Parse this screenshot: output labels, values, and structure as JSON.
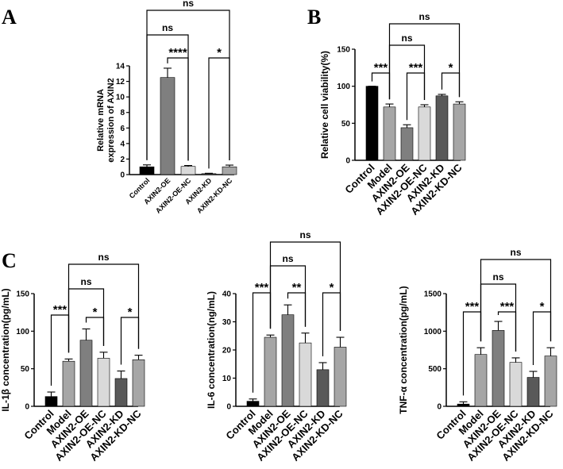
{
  "panel_letters": {
    "a": "A",
    "b": "B",
    "c": "C"
  },
  "colors": {
    "Control": "#000000",
    "Model": "#a6a6a6",
    "AXIN2-OE": "#7f7f7f",
    "AXIN2-OE-NC": "#d9d9d9",
    "AXIN2-KD": "#595959",
    "AXIN2-KD-NC": "#a6a6a6"
  },
  "chart_data": [
    {
      "id": "A",
      "type": "bar",
      "ylabel": "Relative mRNA expression of AXIN2",
      "ylabel_lines": [
        "Relative mRNA",
        "expression of AXIN2"
      ],
      "categories": [
        "Control",
        "AXIN2-OE",
        "AXIN2-OE-NC",
        "AXIN2-KD",
        "AXIN2-KD-NC"
      ],
      "values": [
        1.0,
        12.5,
        1.05,
        0.12,
        1.0
      ],
      "errors": [
        0.25,
        1.2,
        0.12,
        0.05,
        0.22
      ],
      "ylim": [
        0,
        14
      ],
      "yticks": [
        0,
        2,
        4,
        6,
        8,
        10,
        12,
        14
      ],
      "significance": [
        {
          "from": 0,
          "to": 4,
          "label": "ns"
        },
        {
          "from": 0,
          "to": 2,
          "label": "ns"
        },
        {
          "from": 1,
          "to": 2,
          "label": "****"
        },
        {
          "from": 3,
          "to": 4,
          "label": "*"
        }
      ]
    },
    {
      "id": "B",
      "type": "bar",
      "ylabel": "Relative cell viability(%)",
      "categories": [
        "Control",
        "Model",
        "AXIN2-OE",
        "AXIN2-OE-NC",
        "AXIN2-KD",
        "AXIN2-KD-NC"
      ],
      "values": [
        100,
        72,
        44,
        72,
        87,
        76
      ],
      "errors": [
        0,
        4,
        4,
        3,
        2,
        3
      ],
      "ylim": [
        0,
        150
      ],
      "yticks": [
        0,
        50,
        100,
        150
      ],
      "significance": [
        {
          "from": 1,
          "to": 5,
          "label": "ns"
        },
        {
          "from": 1,
          "to": 3,
          "label": "ns"
        },
        {
          "from": 0,
          "to": 1,
          "label": "***"
        },
        {
          "from": 2,
          "to": 3,
          "label": "***"
        },
        {
          "from": 4,
          "to": 5,
          "label": "*"
        }
      ]
    },
    {
      "id": "C1",
      "type": "bar",
      "ylabel": "IL-1β concentration(pg/mL)",
      "categories": [
        "Control",
        "Model",
        "AXIN2-OE",
        "AXIN2-OE-NC",
        "AXIN2-KD",
        "AXIN2-KD-NC"
      ],
      "values": [
        13,
        60,
        88,
        64,
        37,
        62
      ],
      "errors": [
        6,
        3,
        15,
        8,
        10,
        6
      ],
      "ylim": [
        0,
        150
      ],
      "yticks": [
        0,
        50,
        100,
        150
      ],
      "significance": [
        {
          "from": 1,
          "to": 5,
          "label": "ns"
        },
        {
          "from": 1,
          "to": 3,
          "label": "ns"
        },
        {
          "from": 0,
          "to": 1,
          "label": "***"
        },
        {
          "from": 2,
          "to": 3,
          "label": "*"
        },
        {
          "from": 4,
          "to": 5,
          "label": "*"
        }
      ]
    },
    {
      "id": "C2",
      "type": "bar",
      "ylabel": "IL-6 concentration(ng/mL)",
      "categories": [
        "Control",
        "Model",
        "AXIN2-OE",
        "AXIN2-OE-NC",
        "AXIN2-KD",
        "AXIN2-KD-NC"
      ],
      "values": [
        1.8,
        24.5,
        32.5,
        22.5,
        13,
        21
      ],
      "errors": [
        0.8,
        0.8,
        3.5,
        3.5,
        2.5,
        3.5
      ],
      "ylim": [
        0,
        40
      ],
      "yticks": [
        0,
        10,
        20,
        30,
        40
      ],
      "significance": [
        {
          "from": 1,
          "to": 5,
          "label": "ns"
        },
        {
          "from": 1,
          "to": 3,
          "label": "ns"
        },
        {
          "from": 0,
          "to": 1,
          "label": "***"
        },
        {
          "from": 2,
          "to": 3,
          "label": "**"
        },
        {
          "from": 4,
          "to": 5,
          "label": "*"
        }
      ]
    },
    {
      "id": "C3",
      "type": "bar",
      "ylabel": "TNF-α concentration(pg/mL)",
      "categories": [
        "Control",
        "Model",
        "AXIN2-OE",
        "AXIN2-OE-NC",
        "AXIN2-KD",
        "AXIN2-KD-NC"
      ],
      "values": [
        30,
        690,
        1010,
        585,
        385,
        670
      ],
      "errors": [
        30,
        90,
        120,
        60,
        80,
        110
      ],
      "ylim": [
        0,
        1500
      ],
      "yticks": [
        0,
        500,
        1000,
        1500
      ],
      "significance": [
        {
          "from": 1,
          "to": 5,
          "label": "ns"
        },
        {
          "from": 1,
          "to": 3,
          "label": "ns"
        },
        {
          "from": 0,
          "to": 1,
          "label": "***"
        },
        {
          "from": 2,
          "to": 3,
          "label": "***"
        },
        {
          "from": 4,
          "to": 5,
          "label": "*"
        }
      ]
    }
  ]
}
